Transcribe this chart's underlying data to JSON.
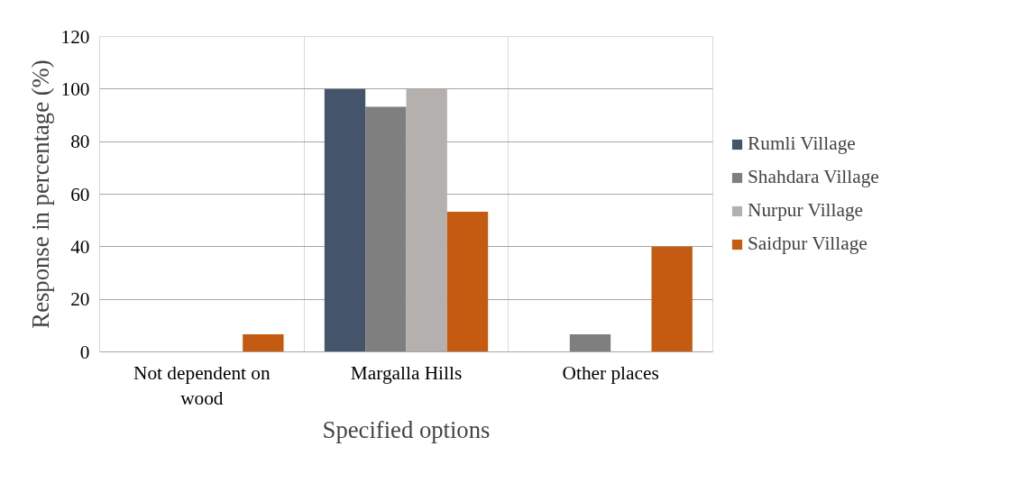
{
  "chart_data": {
    "type": "bar",
    "xlabel": "Specified options",
    "ylabel": "Response in percentage (%)",
    "categories": [
      "Not dependent on wood",
      "Margalla Hills",
      "Other places"
    ],
    "series": [
      {
        "name": "Rumli Village",
        "color": "#44546a",
        "values": [
          0,
          100,
          0
        ]
      },
      {
        "name": "Shahdara Village",
        "color": "#7f7f7f",
        "values": [
          0,
          93.3,
          6.7
        ]
      },
      {
        "name": "Nurpur Village",
        "color": "#b4b0ae",
        "values": [
          0,
          100,
          0
        ]
      },
      {
        "name": "Saidpur Village",
        "color": "#c55a11",
        "values": [
          6.7,
          53.3,
          40
        ]
      }
    ],
    "ylim": [
      0,
      120
    ],
    "yticks": [
      0,
      20,
      40,
      60,
      80,
      100,
      120
    ],
    "grid": true,
    "legend": "right"
  }
}
